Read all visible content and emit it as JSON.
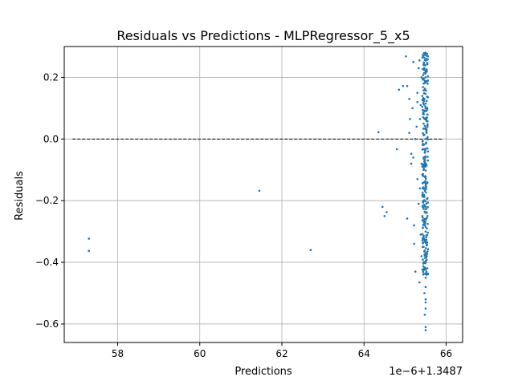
{
  "chart_data": {
    "type": "scatter",
    "title": "Residuals vs Predictions - MLPRegressor_5_x5",
    "xlabel": "Predictions",
    "ylabel": "Residuals",
    "x_offset_text": "1e−6+1.3487",
    "xlim": [
      56.7,
      66.4
    ],
    "ylim": [
      -0.66,
      0.3
    ],
    "x_ticks": [
      58,
      60,
      62,
      64,
      66
    ],
    "x_tick_labels": [
      "58",
      "60",
      "62",
      "64",
      "66"
    ],
    "y_ticks": [
      0.2,
      0.0,
      -0.2,
      -0.4,
      -0.6
    ],
    "y_tick_labels": [
      "0.2",
      "0.0",
      "−0.2",
      "−0.4",
      "−0.6"
    ],
    "grid": true,
    "point_color": "#1f77b4",
    "reference_line": {
      "y": 0,
      "x_start": 56.9,
      "x_end": 65.9,
      "style": "dashed",
      "color": "#000000"
    },
    "points": [
      {
        "x": 57.3,
        "y": -0.323
      },
      {
        "x": 57.3,
        "y": -0.363
      },
      {
        "x": 61.45,
        "y": -0.168
      },
      {
        "x": 62.7,
        "y": -0.36
      },
      {
        "x": 64.35,
        "y": 0.022
      },
      {
        "x": 64.45,
        "y": -0.22
      },
      {
        "x": 64.5,
        "y": -0.25
      },
      {
        "x": 64.55,
        "y": -0.237
      },
      {
        "x": 64.8,
        "y": -0.033
      },
      {
        "x": 64.85,
        "y": 0.16
      },
      {
        "x": 64.95,
        "y": 0.172
      },
      {
        "x": 65.02,
        "y": 0.268
      },
      {
        "x": 65.05,
        "y": 0.172
      },
      {
        "x": 65.05,
        "y": -0.258
      },
      {
        "x": 65.1,
        "y": 0.13
      },
      {
        "x": 65.1,
        "y": 0.02
      },
      {
        "x": 65.12,
        "y": 0.065
      },
      {
        "x": 65.15,
        "y": -0.08
      },
      {
        "x": 65.15,
        "y": -0.048
      },
      {
        "x": 65.18,
        "y": 0.1
      },
      {
        "x": 65.2,
        "y": 0.25
      },
      {
        "x": 65.2,
        "y": -0.06
      },
      {
        "x": 65.22,
        "y": -0.34
      },
      {
        "x": 65.22,
        "y": -0.28
      },
      {
        "x": 65.25,
        "y": -0.43
      },
      {
        "x": 65.25,
        "y": 0.0
      },
      {
        "x": 65.28,
        "y": 0.04
      },
      {
        "x": 65.3,
        "y": -0.13
      },
      {
        "x": 65.3,
        "y": 0.15
      },
      {
        "x": 65.3,
        "y": 0.12
      },
      {
        "x": 65.33,
        "y": 0.23
      },
      {
        "x": 65.33,
        "y": -0.21
      },
      {
        "x": 65.35,
        "y": 0.255
      },
      {
        "x": 65.35,
        "y": -0.465
      },
      {
        "x": 65.36,
        "y": 0.065
      },
      {
        "x": 65.36,
        "y": -0.16
      },
      {
        "x": 65.38,
        "y": 0.11
      },
      {
        "x": 65.38,
        "y": -0.31
      },
      {
        "x": 65.4,
        "y": 0.2
      },
      {
        "x": 65.4,
        "y": -0.08
      },
      {
        "x": 65.4,
        "y": -0.38
      },
      {
        "x": 65.42,
        "y": 0.14
      },
      {
        "x": 65.42,
        "y": -0.25
      },
      {
        "x": 65.43,
        "y": -0.02
      },
      {
        "x": 65.45,
        "y": 0.24
      },
      {
        "x": 65.45,
        "y": 0.18
      },
      {
        "x": 65.45,
        "y": 0.05
      },
      {
        "x": 65.45,
        "y": -0.1
      },
      {
        "x": 65.45,
        "y": -0.2
      },
      {
        "x": 65.45,
        "y": -0.35
      },
      {
        "x": 65.47,
        "y": -0.5
      },
      {
        "x": 65.47,
        "y": 0.09
      },
      {
        "x": 65.48,
        "y": -0.57
      },
      {
        "x": 65.5,
        "y": -0.61
      },
      {
        "x": 65.5,
        "y": -0.62
      },
      {
        "x": 65.5,
        "y": -0.55
      },
      {
        "x": 65.5,
        "y": -0.53
      },
      {
        "x": 65.5,
        "y": -0.52
      },
      {
        "x": 65.5,
        "y": -0.48
      },
      {
        "x": 65.5,
        "y": -0.45
      },
      {
        "x": 65.5,
        "y": -0.42
      },
      {
        "x": 65.5,
        "y": -0.4
      },
      {
        "x": 65.5,
        "y": -0.3
      },
      {
        "x": 65.5,
        "y": -0.22
      },
      {
        "x": 65.5,
        "y": -0.15
      },
      {
        "x": 65.5,
        "y": 0.0
      },
      {
        "x": 65.5,
        "y": 0.1
      },
      {
        "x": 65.5,
        "y": 0.2
      },
      {
        "x": 65.5,
        "y": 0.28
      },
      {
        "x": 65.52,
        "y": 0.26
      },
      {
        "x": 65.52,
        "y": -0.44
      }
    ],
    "dense_column": {
      "x": [
        65.42,
        65.56
      ],
      "y_range": [
        -0.44,
        0.28
      ],
      "count": 300
    }
  }
}
